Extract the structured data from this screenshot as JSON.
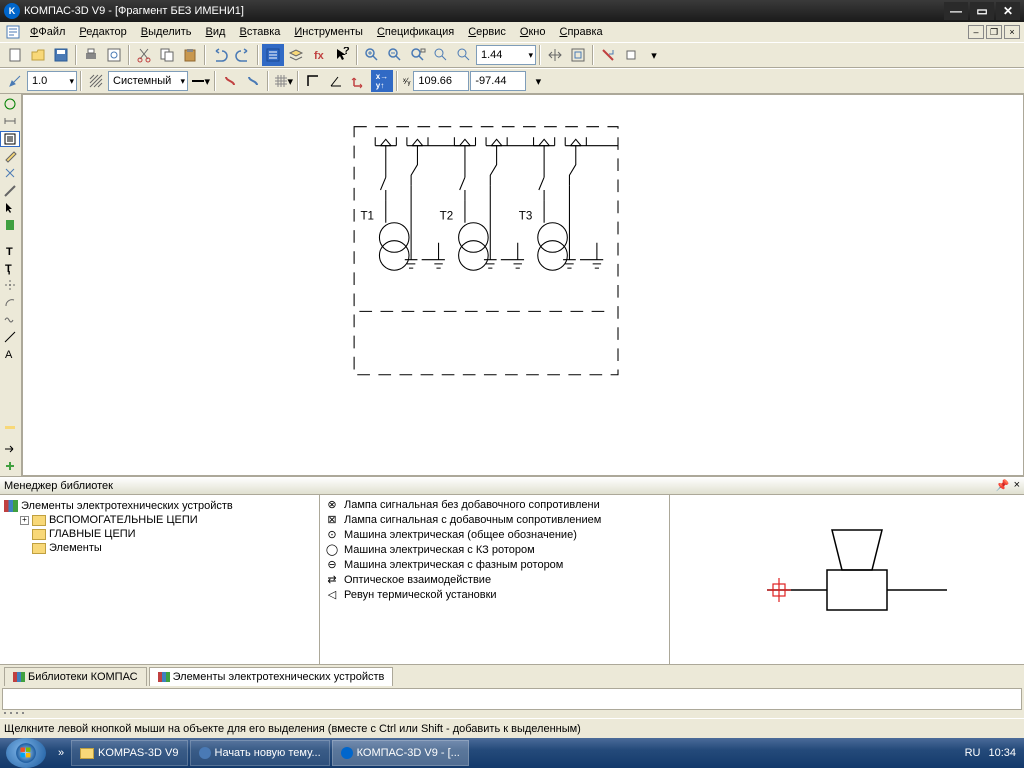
{
  "window": {
    "title": "КОМПАС-3D V9 - [Фрагмент БЕЗ ИМЕНИ1]",
    "app_icon_letter": "K"
  },
  "menu": {
    "items": [
      "Файл",
      "Редактор",
      "Выделить",
      "Вид",
      "Вставка",
      "Инструменты",
      "Спецификация",
      "Сервис",
      "Окно",
      "Справка"
    ]
  },
  "tb2": {
    "zoom": "1.44",
    "coord_x": "109.66",
    "coord_y": "-97.44"
  },
  "tb3": {
    "scale": "1.0",
    "layer": "Системный"
  },
  "schematic": {
    "labels": [
      "Т1",
      "Т2",
      "Т3"
    ]
  },
  "libmgr": {
    "title": "Менеджер библиотек",
    "tree_root": "Элементы электротехнических устройств",
    "tree": [
      "ВСПОМОГАТЕЛЬНЫЕ ЦЕПИ",
      "ГЛАВНЫЕ ЦЕПИ",
      "Элементы"
    ],
    "list": [
      "Лампа сигнальная без добавочного сопротивлени",
      "Лампа сигнальная с добавочным сопротивлением",
      "Машина электрическая (общее обозначение)",
      "Машина электрическая с КЗ ротором",
      "Машина электрическая с фазным ротором",
      "Оптическое взаимодействие",
      "Ревун термической установки"
    ],
    "tabs": [
      "Библиотеки КОМПАС",
      "Элементы электротехнических устройств"
    ]
  },
  "status": {
    "text": "Щелкните левой кнопкой мыши на объекте для его выделения (вместе с Ctrl или Shift - добавить к выделенным)"
  },
  "taskbar": {
    "tasks": [
      "KOMPAS-3D V9",
      "Начать новую тему...",
      "КОМПАС-3D V9 - [..."
    ],
    "lang": "RU",
    "clock": "10:34"
  }
}
